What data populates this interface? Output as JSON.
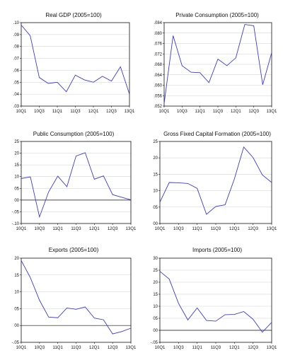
{
  "chart_data": [
    {
      "type": "line",
      "title": "Real GDP (2005=100)",
      "x_ticks": [
        "10Q1",
        "10Q3",
        "11Q1",
        "11Q3",
        "12Q1",
        "12Q3",
        "13Q1"
      ],
      "y_ticks": [
        ".10",
        ".09",
        ".08",
        ".07",
        ".06",
        ".05",
        ".04",
        ".03"
      ],
      "ylim": [
        0.03,
        0.1
      ],
      "zero_line": false,
      "grid": true,
      "series": [
        {
          "color": "#3a3adf",
          "values": [
            0.098,
            0.089,
            0.054,
            0.049,
            0.05,
            0.042,
            0.056,
            0.052,
            0.05,
            0.055,
            0.051,
            0.063,
            0.04
          ]
        }
      ]
    },
    {
      "type": "line",
      "title": "Private Consumption (2005=100)",
      "x_ticks": [
        "10Q1",
        "10Q3",
        "11Q1",
        "11Q3",
        "12Q1",
        "12Q3",
        "13Q1"
      ],
      "y_ticks": [
        ".084",
        ".080",
        ".076",
        ".072",
        ".068",
        ".064",
        ".060",
        ".056",
        ".052"
      ],
      "ylim": [
        0.052,
        0.084
      ],
      "zero_line": false,
      "grid": true,
      "series": [
        {
          "color": "#3a3adf",
          "values": [
            0.053,
            0.079,
            0.0675,
            0.065,
            0.0648,
            0.061,
            0.07,
            0.0675,
            0.0705,
            0.0833,
            0.0828,
            0.0602,
            0.0725
          ]
        }
      ]
    },
    {
      "type": "line",
      "title": "Public Consumption (2005=100)",
      "x_ticks": [
        "10Q1",
        "10Q3",
        "11Q1",
        "11Q3",
        "12Q1",
        "12Q3",
        "13Q1"
      ],
      "y_ticks": [
        "25",
        "20",
        "15",
        "10",
        "05",
        "00",
        "-.05",
        "-.10"
      ],
      "ylim": [
        -0.1,
        0.25
      ],
      "zero_line": true,
      "grid": true,
      "series": [
        {
          "color": "#3a3adf",
          "values": [
            0.092,
            0.099,
            -0.072,
            0.035,
            0.102,
            0.057,
            0.188,
            0.202,
            0.089,
            0.103,
            0.023,
            0.012,
            0.001
          ]
        }
      ]
    },
    {
      "type": "line",
      "title": "Gross Fixed Capital Formation (2005=100)",
      "x_ticks": [
        "10Q1",
        "10Q3",
        "11Q1",
        "11Q3",
        "12Q1",
        "12Q3",
        "13Q1"
      ],
      "y_ticks": [
        "25",
        "20",
        "15",
        "10",
        "05",
        "00"
      ],
      "ylim": [
        0.0,
        0.25
      ],
      "zero_line": false,
      "grid": true,
      "series": [
        {
          "color": "#3a3adf",
          "values": [
            0.065,
            0.125,
            0.124,
            0.122,
            0.107,
            0.028,
            0.052,
            0.057,
            0.136,
            0.233,
            0.201,
            0.148,
            0.125
          ]
        }
      ]
    },
    {
      "type": "line",
      "title": "Exports (2005=100)",
      "x_ticks": [
        "10Q1",
        "10Q3",
        "11Q1",
        "11Q3",
        "12Q1",
        "12Q3",
        "13Q1"
      ],
      "y_ticks": [
        "20",
        "15",
        "10",
        "05",
        "00",
        "-.05"
      ],
      "ylim": [
        -0.05,
        0.2
      ],
      "zero_line": true,
      "grid": true,
      "series": [
        {
          "color": "#3a3adf",
          "values": [
            0.193,
            0.142,
            0.075,
            0.025,
            0.023,
            0.052,
            0.048,
            0.055,
            0.022,
            0.017,
            -0.025,
            -0.018,
            -0.008
          ]
        }
      ]
    },
    {
      "type": "line",
      "title": "Imports (2005=100)",
      "x_ticks": [
        "10Q1",
        "10Q3",
        "11Q1",
        "11Q3",
        "12Q1",
        "12Q3",
        "13Q1"
      ],
      "y_ticks": [
        "30",
        "25",
        "20",
        "15",
        "10",
        "05",
        "00",
        "-.05"
      ],
      "ylim": [
        -0.05,
        0.3
      ],
      "zero_line": true,
      "grid": true,
      "series": [
        {
          "color": "#3a3adf",
          "values": [
            0.245,
            0.213,
            0.112,
            0.043,
            0.093,
            0.041,
            0.038,
            0.065,
            0.066,
            0.078,
            0.046,
            -0.008,
            0.033
          ]
        }
      ]
    }
  ]
}
